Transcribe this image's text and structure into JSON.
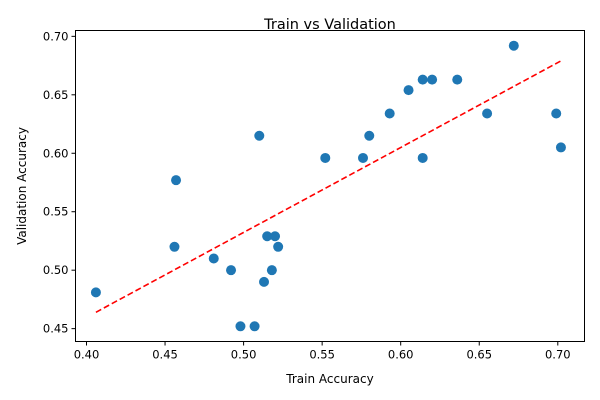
{
  "chart_data": {
    "type": "scatter",
    "title": "Train vs Validation",
    "xlabel": "Train Accuracy",
    "ylabel": "Validation Accuracy",
    "xlim": [
      0.393,
      0.717
    ],
    "ylim": [
      0.439,
      0.705
    ],
    "xticks": [
      "0.40",
      "0.45",
      "0.50",
      "0.55",
      "0.60",
      "0.65",
      "0.70"
    ],
    "yticks": [
      "0.45",
      "0.50",
      "0.55",
      "0.60",
      "0.65",
      "0.70"
    ],
    "grid": false,
    "legend": "none",
    "point_color": "#1f77b4",
    "fit_line": {
      "color": "#ff0000",
      "style": "dashed",
      "x": [
        0.406,
        0.702
      ],
      "y": [
        0.464,
        0.679
      ]
    },
    "points": [
      {
        "x": 0.406,
        "y": 0.481
      },
      {
        "x": 0.456,
        "y": 0.52
      },
      {
        "x": 0.457,
        "y": 0.577
      },
      {
        "x": 0.481,
        "y": 0.51
      },
      {
        "x": 0.492,
        "y": 0.5
      },
      {
        "x": 0.498,
        "y": 0.452
      },
      {
        "x": 0.507,
        "y": 0.452
      },
      {
        "x": 0.51,
        "y": 0.615
      },
      {
        "x": 0.513,
        "y": 0.49
      },
      {
        "x": 0.515,
        "y": 0.529
      },
      {
        "x": 0.518,
        "y": 0.5
      },
      {
        "x": 0.52,
        "y": 0.529
      },
      {
        "x": 0.522,
        "y": 0.52
      },
      {
        "x": 0.552,
        "y": 0.596
      },
      {
        "x": 0.576,
        "y": 0.596
      },
      {
        "x": 0.58,
        "y": 0.615
      },
      {
        "x": 0.593,
        "y": 0.634
      },
      {
        "x": 0.605,
        "y": 0.654
      },
      {
        "x": 0.614,
        "y": 0.663
      },
      {
        "x": 0.614,
        "y": 0.596
      },
      {
        "x": 0.62,
        "y": 0.663
      },
      {
        "x": 0.636,
        "y": 0.663
      },
      {
        "x": 0.655,
        "y": 0.634
      },
      {
        "x": 0.672,
        "y": 0.692
      },
      {
        "x": 0.699,
        "y": 0.634
      },
      {
        "x": 0.702,
        "y": 0.605
      }
    ]
  }
}
